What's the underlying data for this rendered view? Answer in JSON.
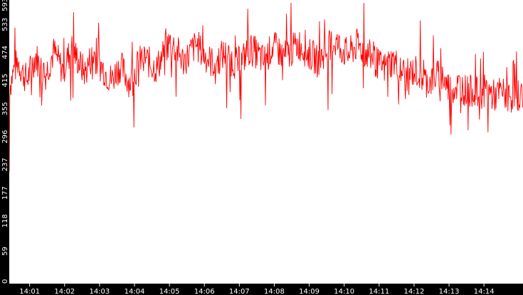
{
  "chart_data": {
    "type": "line",
    "title": "",
    "xlabel": "",
    "ylabel": "",
    "ylim": [
      0,
      593
    ],
    "y_ticks": [
      "0",
      "59",
      "118",
      "177",
      "237",
      "296",
      "355",
      "415",
      "474",
      "533",
      "593"
    ],
    "x_ticks": [
      "14:01",
      "14:02",
      "14:03",
      "14:04",
      "14:05",
      "14:06",
      "14:07",
      "14:08",
      "14:09",
      "14:10",
      "14:11",
      "14:12",
      "14:13",
      "14:14"
    ],
    "x_range": [
      "14:00:25",
      "14:15:07"
    ],
    "grid": false,
    "legend": "none",
    "colors": {
      "series": "#ff0000",
      "axis_band": "#000000",
      "tick_text": "#ffffff",
      "background": "#ffffff"
    },
    "series": [
      {
        "values": [
          415,
          450,
          470,
          445,
          430,
          460,
          480,
          455,
          440,
          465,
          490,
          470,
          450,
          475,
          495,
          480,
          460,
          445,
          470,
          485,
          465,
          455,
          440,
          430,
          450,
          460,
          440,
          425,
          445,
          465,
          480,
          470,
          460,
          455,
          475,
          495,
          510,
          500,
          485,
          470,
          480,
          495,
          505,
          490,
          480,
          470,
          465,
          475,
          485,
          480,
          470,
          465,
          470,
          485,
          495,
          490,
          480,
          470,
          485,
          500,
          495,
          485,
          480,
          490,
          500,
          505,
          495,
          485,
          480,
          470,
          480,
          490,
          505,
          510,
          500,
          490,
          485,
          495,
          505,
          495,
          485,
          480,
          470,
          460,
          455,
          465,
          470,
          460,
          450,
          440,
          445,
          450,
          440,
          430,
          425,
          435,
          440,
          430,
          420,
          410,
          415,
          420,
          410,
          405,
          410,
          400,
          405,
          410,
          400,
          395,
          405,
          400,
          395,
          390,
          400,
          395
        ]
      }
    ]
  }
}
